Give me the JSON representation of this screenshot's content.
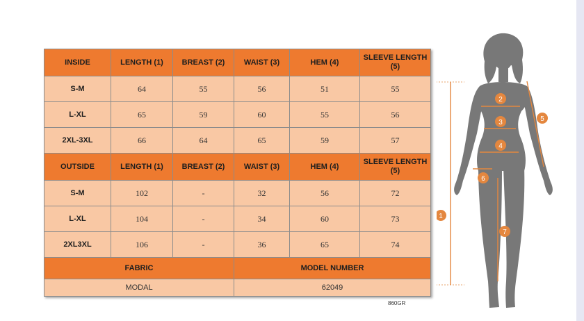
{
  "inside_header": [
    "INSIDE",
    "LENGTH (1)",
    "BREAST (2)",
    "WAIST (3)",
    "HEM (4)",
    "SLEEVE LENGTH (5)"
  ],
  "inside_rows": [
    {
      "size": "S-M",
      "values": [
        "64",
        "55",
        "56",
        "51",
        "55"
      ]
    },
    {
      "size": "L-XL",
      "values": [
        "65",
        "59",
        "60",
        "55",
        "56"
      ]
    },
    {
      "size": "2XL-3XL",
      "values": [
        "66",
        "64",
        "65",
        "59",
        "57"
      ]
    }
  ],
  "outside_header": [
    "OUTSIDE",
    "LENGTH (1)",
    "BREAST (2)",
    "WAIST (3)",
    "HEM (4)",
    "SLEEVE LENGTH (5)"
  ],
  "outside_rows": [
    {
      "size": "S-M",
      "values": [
        "102",
        "-",
        "32",
        "56",
        "72"
      ]
    },
    {
      "size": "L-XL",
      "values": [
        "104",
        "-",
        "34",
        "60",
        "73"
      ]
    },
    {
      "size": "2XL3XL",
      "values": [
        "106",
        "-",
        "36",
        "65",
        "74"
      ]
    }
  ],
  "fabric_label": "FABRIC",
  "fabric_value": "MODAL",
  "model_label": "MODEL NUMBER",
  "model_value": "62049",
  "code": "860GR",
  "markers": [
    "1",
    "2",
    "3",
    "4",
    "5",
    "6",
    "7"
  ],
  "colors": {
    "header": "#ee7a2f",
    "cell": "#f9c8a4",
    "figure": "#777777",
    "measure": "#e4873f"
  }
}
